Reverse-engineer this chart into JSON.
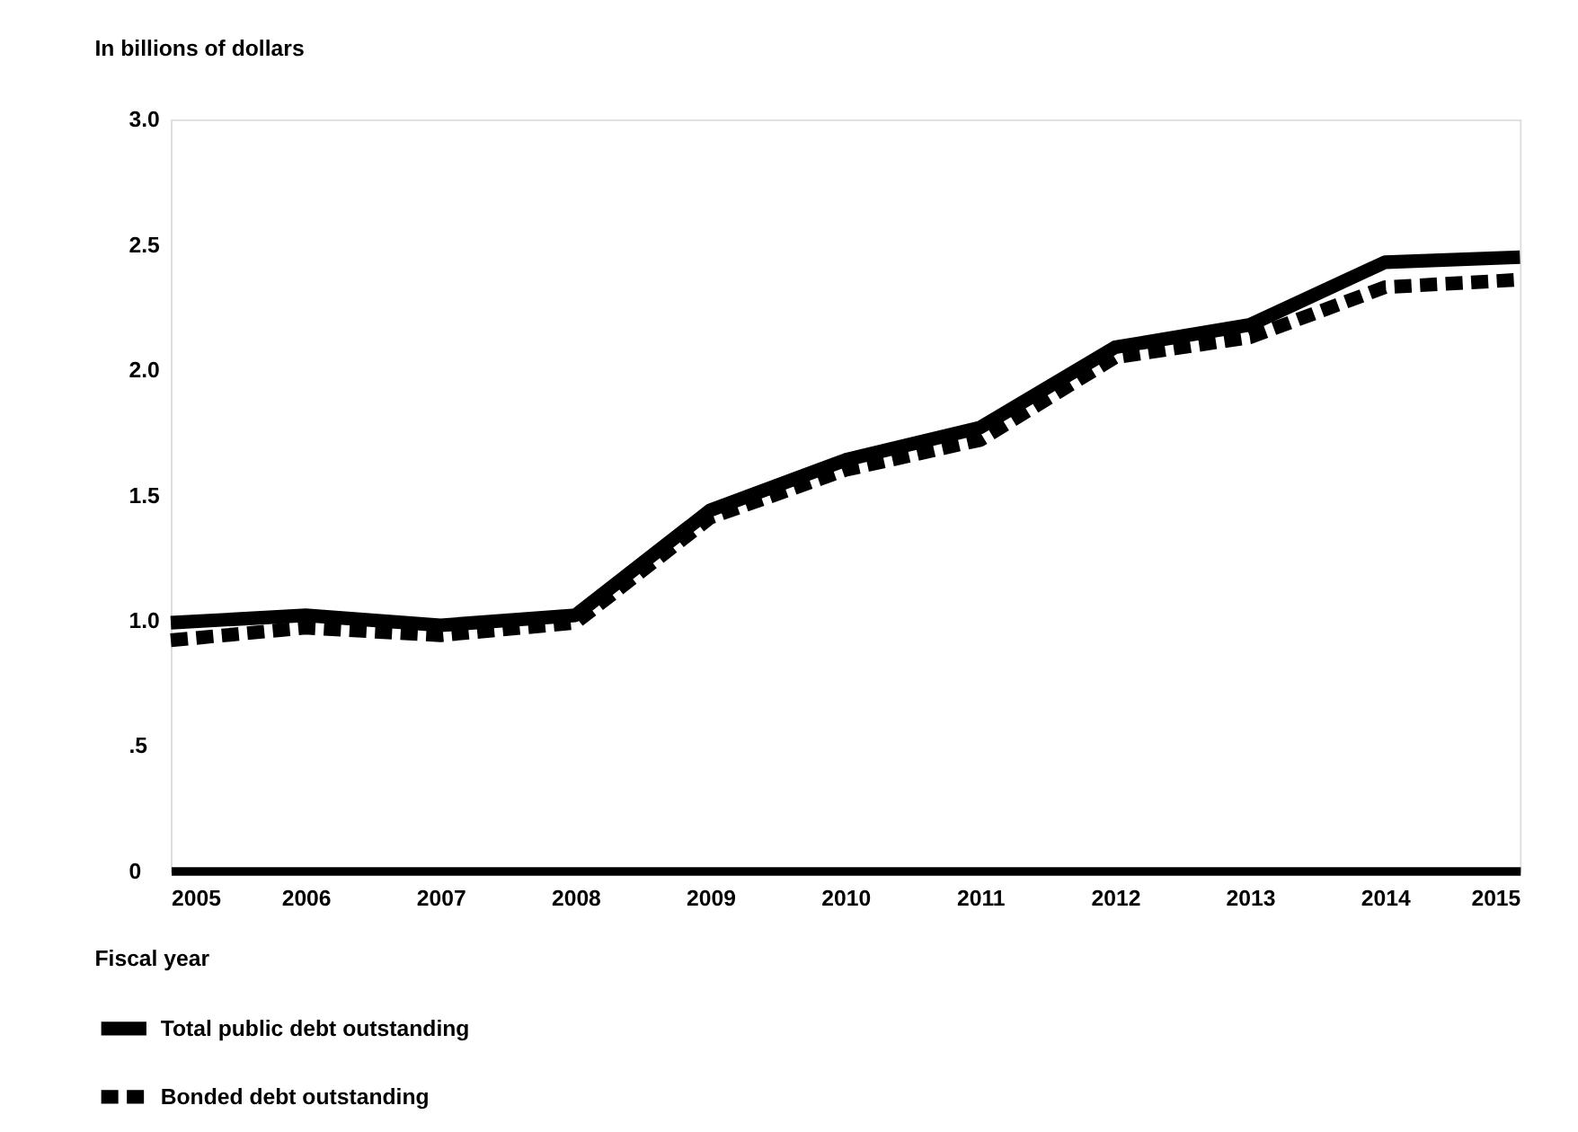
{
  "chart_data": {
    "type": "line",
    "ylabel": "In billions of dollars",
    "xlabel": "Fiscal year",
    "x": [
      2005,
      2006,
      2007,
      2008,
      2009,
      2010,
      2011,
      2012,
      2013,
      2014,
      2015
    ],
    "series": [
      {
        "name": "Total public debt outstanding",
        "color": "#000000",
        "line_style": "solid",
        "values": [
          0.99,
          1.02,
          0.98,
          1.02,
          1.44,
          1.64,
          1.77,
          2.09,
          2.18,
          2.43,
          2.45
        ]
      },
      {
        "name": "Bonded debt outstanding",
        "color": "#000000",
        "line_style": "dashed",
        "values": [
          0.92,
          0.97,
          0.94,
          0.99,
          1.41,
          1.6,
          1.72,
          2.05,
          2.13,
          2.33,
          2.36
        ]
      }
    ],
    "xlim": [
      2005,
      2015
    ],
    "xticks": [
      2005,
      2006,
      2007,
      2008,
      2009,
      2010,
      2011,
      2012,
      2013,
      2014,
      2015
    ],
    "ylim": [
      0,
      3.0
    ],
    "yticks": [
      0,
      {
        "value": 0.5,
        "label": ".5"
      },
      {
        "value": 1,
        "label": "1.0"
      },
      {
        "value": 1.5,
        "label": "1.5"
      },
      {
        "value": 2,
        "label": "2.0"
      },
      {
        "value": 2.5,
        "label": "2.5"
      },
      {
        "value": 3,
        "label": "3.0"
      }
    ],
    "grid": false,
    "legend": "bottom left",
    "marker": "none"
  }
}
